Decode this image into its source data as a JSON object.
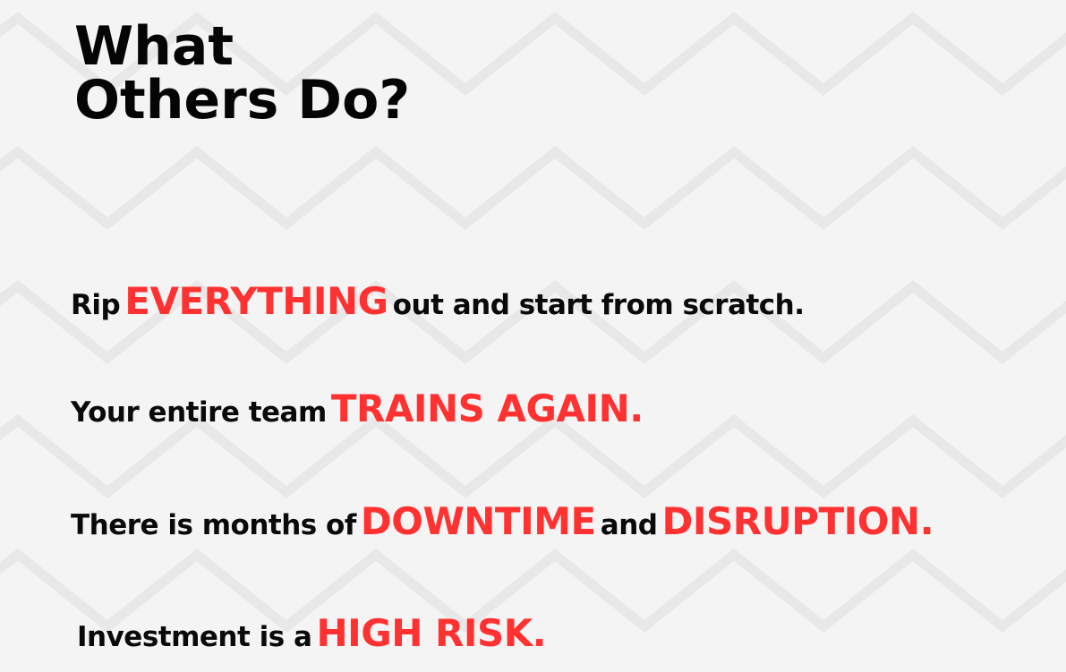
{
  "title": "What\nOthers Do?",
  "lines": [
    {
      "parts": [
        {
          "text": "Rip",
          "emphasis": false
        },
        {
          "text": "EVERYTHING",
          "emphasis": true
        },
        {
          "text": "out and start from scratch.",
          "emphasis": false
        }
      ]
    },
    {
      "parts": [
        {
          "text": "Your entire team",
          "emphasis": false
        },
        {
          "text": "TRAINS AGAIN.",
          "emphasis": true
        }
      ]
    },
    {
      "parts": [
        {
          "text": "There is months of",
          "emphasis": false
        },
        {
          "text": "DOWNTIME",
          "emphasis": true
        },
        {
          "text": "and",
          "emphasis": false
        },
        {
          "text": "DISRUPTION.",
          "emphasis": true
        }
      ]
    },
    {
      "parts": [
        {
          "text": "Investment is a",
          "emphasis": false
        },
        {
          "text": "HIGH RISK.",
          "emphasis": true
        }
      ]
    }
  ],
  "colors": {
    "background": "#f4f4f4",
    "pattern": "#e9e9e9",
    "text": "#0a0a0a",
    "accent": "#ff3131"
  }
}
